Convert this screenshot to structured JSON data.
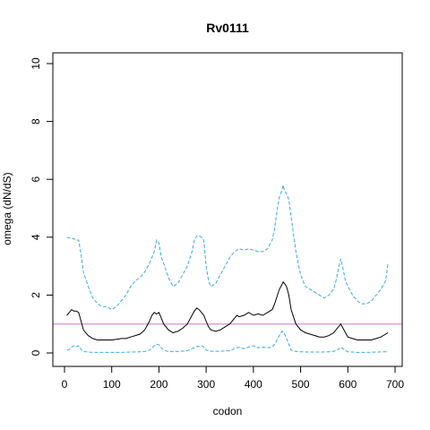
{
  "chart_data": {
    "type": "line",
    "title": "Rv0111",
    "xlabel": "codon",
    "ylabel": "omega (dN/dS)",
    "xlim": [
      0,
      700
    ],
    "ylim": [
      0,
      10
    ],
    "xticks": [
      0,
      100,
      200,
      300,
      400,
      500,
      600,
      700
    ],
    "yticks": [
      0,
      2,
      4,
      6,
      8,
      10
    ],
    "reference_line": {
      "y": 1,
      "color": "#c77cc7"
    },
    "grid": false,
    "legend": "none",
    "series": [
      {
        "role": "upper",
        "color": "#3fa9e0",
        "dash": "dashed",
        "x": [
          5,
          15,
          20,
          25,
          30,
          35,
          40,
          50,
          60,
          70,
          80,
          90,
          100,
          110,
          120,
          130,
          140,
          150,
          160,
          170,
          180,
          185,
          190,
          195,
          200,
          205,
          210,
          220,
          230,
          240,
          250,
          260,
          270,
          275,
          280,
          285,
          290,
          295,
          300,
          305,
          310,
          320,
          330,
          340,
          350,
          360,
          370,
          380,
          390,
          400,
          410,
          420,
          430,
          440,
          445,
          450,
          455,
          460,
          463,
          466,
          470,
          475,
          480,
          490,
          500,
          510,
          520,
          530,
          540,
          550,
          560,
          570,
          575,
          580,
          585,
          590,
          595,
          600,
          610,
          620,
          630,
          640,
          650,
          660,
          670,
          680,
          685
        ],
        "y": [
          4.0,
          3.95,
          3.95,
          3.9,
          3.9,
          3.4,
          2.8,
          2.3,
          1.9,
          1.7,
          1.6,
          1.6,
          1.5,
          1.6,
          1.8,
          2.0,
          2.3,
          2.5,
          2.6,
          2.8,
          3.1,
          3.3,
          3.5,
          3.9,
          3.8,
          3.3,
          3.1,
          2.6,
          2.3,
          2.4,
          2.7,
          3.0,
          3.5,
          3.9,
          4.05,
          4.05,
          4.0,
          3.9,
          3.0,
          2.5,
          2.3,
          2.4,
          2.7,
          3.0,
          3.3,
          3.5,
          3.6,
          3.55,
          3.6,
          3.55,
          3.5,
          3.5,
          3.6,
          3.9,
          4.3,
          4.9,
          5.4,
          5.6,
          5.8,
          5.6,
          5.5,
          5.3,
          4.7,
          3.5,
          2.7,
          2.3,
          2.2,
          2.1,
          2.0,
          1.9,
          2.0,
          2.2,
          2.5,
          2.9,
          3.25,
          2.9,
          2.5,
          2.3,
          2.0,
          1.8,
          1.7,
          1.7,
          1.8,
          2.0,
          2.2,
          2.5,
          3.1
        ]
      },
      {
        "role": "mean",
        "color": "#000000",
        "dash": "solid",
        "x": [
          5,
          10,
          15,
          20,
          25,
          30,
          35,
          40,
          50,
          60,
          70,
          80,
          90,
          100,
          110,
          120,
          130,
          140,
          150,
          160,
          170,
          175,
          180,
          185,
          190,
          195,
          200,
          205,
          210,
          220,
          230,
          240,
          250,
          260,
          270,
          275,
          280,
          285,
          290,
          295,
          300,
          305,
          310,
          320,
          330,
          340,
          350,
          360,
          365,
          370,
          380,
          390,
          400,
          410,
          420,
          430,
          440,
          445,
          450,
          455,
          460,
          463,
          466,
          470,
          475,
          480,
          490,
          500,
          510,
          520,
          530,
          540,
          550,
          560,
          570,
          575,
          580,
          585,
          590,
          595,
          600,
          610,
          620,
          630,
          640,
          650,
          660,
          670,
          680,
          685
        ],
        "y": [
          1.3,
          1.4,
          1.5,
          1.45,
          1.45,
          1.4,
          1.1,
          0.8,
          0.6,
          0.5,
          0.45,
          0.45,
          0.45,
          0.45,
          0.47,
          0.5,
          0.5,
          0.55,
          0.6,
          0.65,
          0.8,
          0.95,
          1.1,
          1.3,
          1.4,
          1.35,
          1.4,
          1.2,
          1.0,
          0.8,
          0.7,
          0.75,
          0.85,
          1.0,
          1.3,
          1.45,
          1.55,
          1.5,
          1.4,
          1.3,
          1.1,
          0.9,
          0.8,
          0.75,
          0.8,
          0.9,
          1.0,
          1.2,
          1.3,
          1.25,
          1.3,
          1.4,
          1.3,
          1.35,
          1.3,
          1.4,
          1.5,
          1.7,
          1.95,
          2.2,
          2.35,
          2.45,
          2.4,
          2.3,
          2.0,
          1.5,
          1.0,
          0.8,
          0.7,
          0.65,
          0.6,
          0.55,
          0.55,
          0.6,
          0.7,
          0.8,
          0.9,
          1.0,
          0.85,
          0.7,
          0.55,
          0.5,
          0.45,
          0.45,
          0.45,
          0.45,
          0.5,
          0.55,
          0.65,
          0.7
        ]
      },
      {
        "role": "lower",
        "color": "#3fa9e0",
        "dash": "dashed",
        "x": [
          5,
          10,
          15,
          20,
          25,
          30,
          35,
          40,
          50,
          60,
          80,
          100,
          120,
          140,
          160,
          170,
          180,
          185,
          190,
          195,
          200,
          205,
          210,
          220,
          240,
          260,
          270,
          280,
          290,
          295,
          300,
          310,
          330,
          350,
          360,
          370,
          380,
          390,
          400,
          410,
          420,
          430,
          440,
          445,
          450,
          455,
          460,
          465,
          470,
          475,
          480,
          490,
          500,
          520,
          540,
          560,
          570,
          580,
          585,
          590,
          595,
          600,
          620,
          640,
          660,
          680,
          685
        ],
        "y": [
          0.1,
          0.12,
          0.2,
          0.25,
          0.22,
          0.25,
          0.12,
          0.05,
          0.03,
          0.02,
          0.02,
          0.02,
          0.02,
          0.03,
          0.04,
          0.05,
          0.1,
          0.15,
          0.25,
          0.3,
          0.28,
          0.18,
          0.1,
          0.05,
          0.05,
          0.08,
          0.15,
          0.22,
          0.25,
          0.2,
          0.1,
          0.06,
          0.06,
          0.08,
          0.15,
          0.2,
          0.15,
          0.2,
          0.25,
          0.18,
          0.2,
          0.18,
          0.2,
          0.3,
          0.45,
          0.6,
          0.75,
          0.7,
          0.5,
          0.3,
          0.1,
          0.05,
          0.04,
          0.03,
          0.03,
          0.04,
          0.06,
          0.12,
          0.2,
          0.15,
          0.08,
          0.04,
          0.02,
          0.02,
          0.03,
          0.04,
          0.05
        ]
      }
    ]
  }
}
